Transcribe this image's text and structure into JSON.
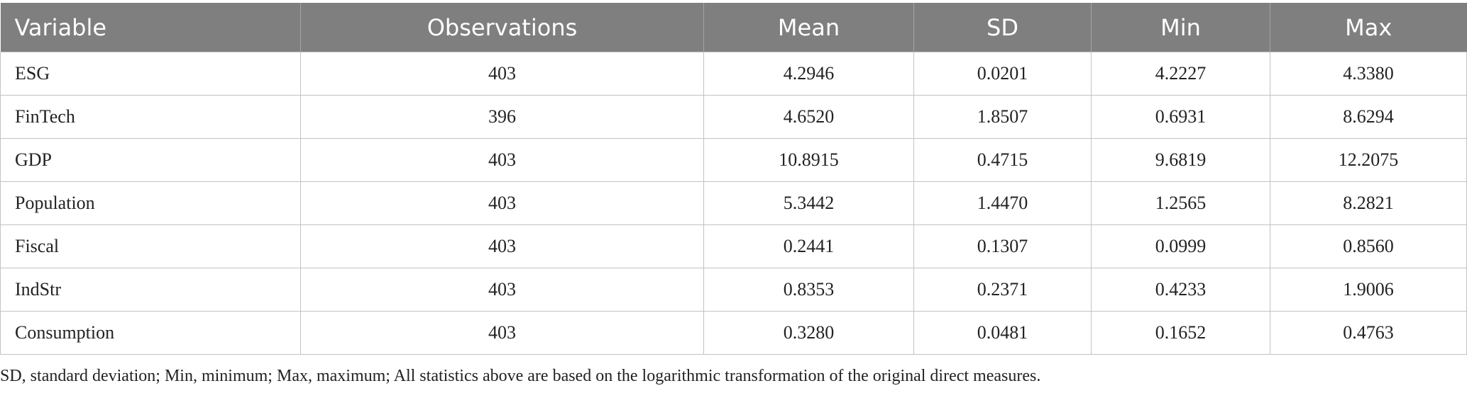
{
  "table": {
    "columns": [
      "Variable",
      "Observations",
      "Mean",
      "SD",
      "Min",
      "Max"
    ],
    "rows": [
      [
        "ESG",
        "403",
        "4.2946",
        "0.0201",
        "4.2227",
        "4.3380"
      ],
      [
        "FinTech",
        "396",
        "4.6520",
        "1.8507",
        "0.6931",
        "8.6294"
      ],
      [
        "GDP",
        "403",
        "10.8915",
        "0.4715",
        "9.6819",
        "12.2075"
      ],
      [
        "Population",
        "403",
        "5.3442",
        "1.4470",
        "1.2565",
        "8.2821"
      ],
      [
        "Fiscal",
        "403",
        "0.2441",
        "0.1307",
        "0.0999",
        "0.8560"
      ],
      [
        "IndStr",
        "403",
        "0.8353",
        "0.2371",
        "0.4233",
        "1.9006"
      ],
      [
        "Consumption",
        "403",
        "0.3280",
        "0.0481",
        "0.1652",
        "0.4763"
      ]
    ]
  },
  "footnote": "SD, standard deviation; Min, minimum; Max, maximum; All statistics above are based on the logarithmic transformation of the original direct measures."
}
